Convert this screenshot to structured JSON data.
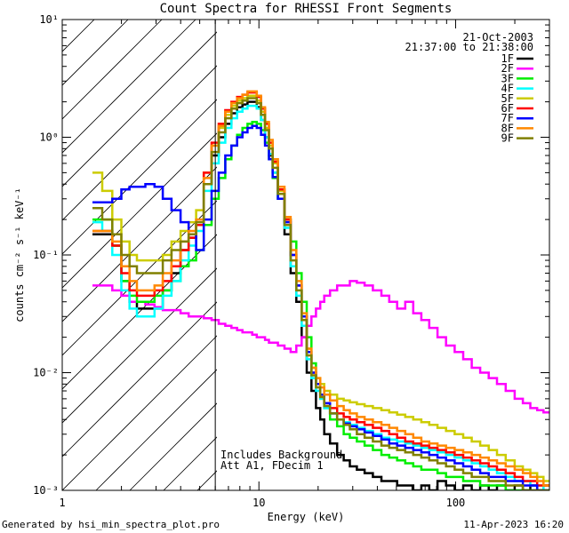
{
  "footer": {
    "generated": "Generated by hsi_min_spectra_plot.pro",
    "timestamp": "11-Apr-2023 16:20"
  },
  "chart_data": {
    "type": "line",
    "drawstyle": "steps",
    "title": "Count Spectra for RHESSI Front Segments",
    "xlabel": "Energy (keV)",
    "ylabel": "counts cm⁻² s⁻¹ keV⁻¹",
    "xscale": "log",
    "yscale": "log",
    "xlim": [
      1,
      300
    ],
    "ylim": [
      0.001,
      10
    ],
    "x_ticks": [
      {
        "value": 1,
        "label": "1"
      },
      {
        "value": 10,
        "label": "10"
      },
      {
        "value": 100,
        "label": "100"
      }
    ],
    "y_ticks": [
      {
        "value": 0.001,
        "label": "10⁻³"
      },
      {
        "value": 0.01,
        "label": "10⁻²"
      },
      {
        "value": 0.1,
        "label": "10⁻¹"
      },
      {
        "value": 1,
        "label": "10⁰"
      },
      {
        "value": 10,
        "label": "10¹"
      }
    ],
    "date": "21-Oct-2003",
    "time_range": "21:37:00 to 21:38:00",
    "hatched_below_keV": 6,
    "annotations": [
      "Includes Background",
      "Att A1, FDecim 1"
    ],
    "energies": [
      1.5,
      1.7,
      1.9,
      2.1,
      2.3,
      2.5,
      2.8,
      3.1,
      3.4,
      3.8,
      4.2,
      4.6,
      5.0,
      5.5,
      6.0,
      6.5,
      7.0,
      7.5,
      8.0,
      8.5,
      9.0,
      9.5,
      10.0,
      10.5,
      11.0,
      11.5,
      12.0,
      13.0,
      14.0,
      15.0,
      16.0,
      17.0,
      18.0,
      19.0,
      20.0,
      21.0,
      22.0,
      24.0,
      26.0,
      28.0,
      30.0,
      33.0,
      36.0,
      40.0,
      44.0,
      48.0,
      53.0,
      58.0,
      64.0,
      70.0,
      77.0,
      85.0,
      94.0,
      104.0,
      115.0,
      127.0,
      140.0,
      155.0,
      170.0,
      190.0,
      210.0,
      230.0,
      250.0,
      270.0,
      290.0
    ],
    "series": [
      {
        "name": "1F",
        "color": "#000000",
        "values": [
          0.15,
          0.15,
          0.12,
          0.06,
          0.04,
          0.035,
          0.035,
          0.035,
          0.05,
          0.07,
          0.11,
          0.14,
          0.18,
          0.4,
          0.7,
          1.0,
          1.3,
          1.6,
          1.8,
          1.9,
          2.0,
          2.0,
          1.8,
          1.4,
          1.0,
          0.7,
          0.5,
          0.3,
          0.15,
          0.07,
          0.04,
          0.02,
          0.01,
          0.007,
          0.005,
          0.004,
          0.003,
          0.0025,
          0.002,
          0.0018,
          0.0016,
          0.0015,
          0.0014,
          0.0013,
          0.0012,
          0.0012,
          0.0011,
          0.0011,
          0.001,
          0.0011,
          0.001,
          0.0012,
          0.0011,
          0.001,
          0.0011,
          0.001,
          0.0011,
          0.001,
          0.0011,
          0.001,
          0.0011,
          0.001,
          0.0011,
          0.001,
          0.0011
        ]
      },
      {
        "name": "2F",
        "color": "#ff00ff",
        "values": [
          0.055,
          0.055,
          0.05,
          0.045,
          0.04,
          0.04,
          0.038,
          0.036,
          0.034,
          0.034,
          0.032,
          0.03,
          0.03,
          0.029,
          0.028,
          0.026,
          0.025,
          0.024,
          0.023,
          0.022,
          0.022,
          0.021,
          0.02,
          0.02,
          0.019,
          0.018,
          0.018,
          0.017,
          0.016,
          0.015,
          0.017,
          0.02,
          0.025,
          0.03,
          0.035,
          0.04,
          0.045,
          0.05,
          0.055,
          0.055,
          0.06,
          0.058,
          0.055,
          0.05,
          0.045,
          0.04,
          0.035,
          0.04,
          0.032,
          0.028,
          0.024,
          0.02,
          0.017,
          0.015,
          0.013,
          0.011,
          0.01,
          0.009,
          0.008,
          0.007,
          0.006,
          0.0055,
          0.005,
          0.0048,
          0.0046
        ]
      },
      {
        "name": "3F",
        "color": "#00ee00",
        "values": [
          0.2,
          0.2,
          0.12,
          0.06,
          0.045,
          0.04,
          0.04,
          0.045,
          0.05,
          0.06,
          0.08,
          0.09,
          0.11,
          0.18,
          0.3,
          0.45,
          0.65,
          0.85,
          1.05,
          1.2,
          1.3,
          1.35,
          1.3,
          1.15,
          0.9,
          0.65,
          0.45,
          0.3,
          0.2,
          0.13,
          0.07,
          0.04,
          0.02,
          0.012,
          0.008,
          0.006,
          0.005,
          0.004,
          0.0035,
          0.003,
          0.0028,
          0.0026,
          0.0024,
          0.0022,
          0.002,
          0.0019,
          0.0018,
          0.0017,
          0.0016,
          0.0015,
          0.0015,
          0.0014,
          0.0013,
          0.0013,
          0.0012,
          0.0012,
          0.0011,
          0.0011,
          0.0011,
          0.001,
          0.001,
          0.001,
          0.001,
          0.001,
          0.001
        ]
      },
      {
        "name": "4F",
        "color": "#00ffff",
        "values": [
          0.19,
          0.16,
          0.1,
          0.05,
          0.035,
          0.03,
          0.03,
          0.035,
          0.045,
          0.06,
          0.09,
          0.12,
          0.16,
          0.35,
          0.6,
          0.9,
          1.2,
          1.45,
          1.65,
          1.75,
          1.85,
          1.85,
          1.75,
          1.4,
          1.0,
          0.72,
          0.5,
          0.3,
          0.17,
          0.08,
          0.045,
          0.025,
          0.013,
          0.009,
          0.007,
          0.006,
          0.005,
          0.0045,
          0.004,
          0.0038,
          0.0036,
          0.0034,
          0.0032,
          0.003,
          0.0028,
          0.0027,
          0.0026,
          0.0025,
          0.0024,
          0.0023,
          0.0022,
          0.0021,
          0.002,
          0.0019,
          0.0018,
          0.0017,
          0.0016,
          0.0015,
          0.0014,
          0.0013,
          0.0012,
          0.0012,
          0.0011,
          0.0011,
          0.001
        ]
      },
      {
        "name": "5F",
        "color": "#cccc00",
        "values": [
          0.5,
          0.35,
          0.2,
          0.13,
          0.1,
          0.09,
          0.09,
          0.09,
          0.1,
          0.13,
          0.16,
          0.19,
          0.24,
          0.5,
          0.85,
          1.2,
          1.55,
          1.85,
          2.05,
          2.15,
          2.25,
          2.25,
          2.05,
          1.65,
          1.2,
          0.85,
          0.6,
          0.35,
          0.2,
          0.1,
          0.055,
          0.03,
          0.016,
          0.011,
          0.009,
          0.008,
          0.007,
          0.0065,
          0.006,
          0.0058,
          0.0056,
          0.0054,
          0.0052,
          0.005,
          0.0048,
          0.0046,
          0.0044,
          0.0042,
          0.004,
          0.0038,
          0.0036,
          0.0034,
          0.0032,
          0.003,
          0.0028,
          0.0026,
          0.0024,
          0.0022,
          0.002,
          0.0018,
          0.0016,
          0.0015,
          0.0014,
          0.0013,
          0.0012
        ]
      },
      {
        "name": "6F",
        "color": "#ff0000",
        "values": [
          0.16,
          0.16,
          0.12,
          0.07,
          0.05,
          0.045,
          0.045,
          0.05,
          0.06,
          0.08,
          0.11,
          0.14,
          0.18,
          0.5,
          0.9,
          1.3,
          1.7,
          2.0,
          2.2,
          2.3,
          2.4,
          2.4,
          2.2,
          1.75,
          1.3,
          0.9,
          0.62,
          0.36,
          0.2,
          0.1,
          0.055,
          0.03,
          0.015,
          0.01,
          0.008,
          0.0065,
          0.0055,
          0.005,
          0.0045,
          0.0042,
          0.004,
          0.0038,
          0.0036,
          0.0034,
          0.0032,
          0.003,
          0.0028,
          0.0026,
          0.0025,
          0.0024,
          0.0023,
          0.0022,
          0.0021,
          0.002,
          0.0019,
          0.0018,
          0.0017,
          0.0016,
          0.0015,
          0.0014,
          0.0013,
          0.0012,
          0.0012,
          0.0011,
          0.0011
        ]
      },
      {
        "name": "7F",
        "color": "#0000ff",
        "values": [
          0.28,
          0.28,
          0.3,
          0.36,
          0.38,
          0.38,
          0.4,
          0.38,
          0.3,
          0.24,
          0.19,
          0.15,
          0.11,
          0.2,
          0.35,
          0.5,
          0.7,
          0.85,
          1.0,
          1.1,
          1.2,
          1.25,
          1.2,
          1.05,
          0.85,
          0.65,
          0.46,
          0.3,
          0.19,
          0.1,
          0.055,
          0.03,
          0.015,
          0.01,
          0.008,
          0.0065,
          0.0055,
          0.0045,
          0.004,
          0.0037,
          0.0035,
          0.0033,
          0.0031,
          0.0029,
          0.0027,
          0.0025,
          0.0024,
          0.0023,
          0.0022,
          0.0021,
          0.002,
          0.0019,
          0.0018,
          0.0017,
          0.0016,
          0.0015,
          0.0014,
          0.0013,
          0.0013,
          0.0012,
          0.0012,
          0.0011,
          0.0011,
          0.001,
          0.001
        ]
      },
      {
        "name": "8F",
        "color": "#ff8800",
        "values": [
          0.16,
          0.16,
          0.13,
          0.08,
          0.06,
          0.05,
          0.05,
          0.055,
          0.07,
          0.09,
          0.13,
          0.16,
          0.2,
          0.45,
          0.85,
          1.25,
          1.65,
          1.95,
          2.15,
          2.3,
          2.45,
          2.45,
          2.25,
          1.8,
          1.35,
          0.95,
          0.65,
          0.38,
          0.21,
          0.11,
          0.06,
          0.032,
          0.016,
          0.011,
          0.009,
          0.0075,
          0.0065,
          0.0058,
          0.0052,
          0.0048,
          0.0045,
          0.0042,
          0.004,
          0.0038,
          0.0036,
          0.0034,
          0.0032,
          0.003,
          0.0028,
          0.0026,
          0.0025,
          0.0024,
          0.0023,
          0.0022,
          0.0021,
          0.002,
          0.0019,
          0.0018,
          0.0017,
          0.0016,
          0.0015,
          0.0014,
          0.0013,
          0.0012,
          0.0011
        ]
      },
      {
        "name": "9F",
        "color": "#808000",
        "values": [
          0.25,
          0.2,
          0.15,
          0.1,
          0.08,
          0.07,
          0.07,
          0.07,
          0.09,
          0.11,
          0.13,
          0.15,
          0.19,
          0.4,
          0.75,
          1.1,
          1.45,
          1.75,
          1.95,
          2.05,
          2.15,
          2.15,
          1.95,
          1.55,
          1.15,
          0.8,
          0.55,
          0.33,
          0.18,
          0.09,
          0.05,
          0.028,
          0.014,
          0.0095,
          0.0075,
          0.0062,
          0.0052,
          0.0045,
          0.004,
          0.0036,
          0.0033,
          0.003,
          0.0028,
          0.0026,
          0.0024,
          0.0023,
          0.0022,
          0.0021,
          0.002,
          0.0019,
          0.0018,
          0.0017,
          0.0016,
          0.0015,
          0.0014,
          0.0013,
          0.0013,
          0.0012,
          0.0012,
          0.0011,
          0.0011,
          0.001,
          0.001,
          0.001,
          0.001
        ]
      }
    ]
  }
}
